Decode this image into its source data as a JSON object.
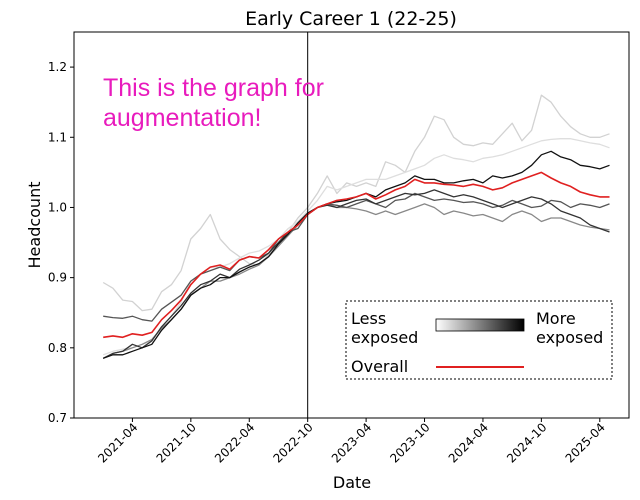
{
  "chart_data": {
    "type": "line",
    "title": "Early Career 1 (22-25)",
    "xlabel": "Date",
    "ylabel": "Headcount",
    "ylim": [
      0.7,
      1.25
    ],
    "yticks": [
      0.7,
      0.8,
      0.9,
      1.0,
      1.1,
      1.2
    ],
    "ytick_labels": [
      "0.7",
      "0.8",
      "0.9",
      "1.0",
      "1.1",
      "1.2"
    ],
    "xticks": [
      3,
      9,
      15,
      21,
      27,
      33,
      39,
      45,
      51
    ],
    "xtick_labels": [
      "2021-04",
      "2021-10",
      "2022-04",
      "2022-10",
      "2023-04",
      "2023-10",
      "2024-04",
      "2024-10",
      "2025-04"
    ],
    "xlim": [
      -3,
      54
    ],
    "x_month_index_origin": "2021-01",
    "vline_x": "2022-10",
    "grid": false,
    "annotation": "This is the graph for\naugmentation!",
    "legend": {
      "placement": "bottom-right",
      "gradient_label_left": "Less\nexposed",
      "gradient_label_right": "More\nexposed",
      "overall_label": "Overall"
    },
    "series": [
      {
        "color": "#d2d2d2",
        "values": [
          0.893,
          0.885,
          0.868,
          0.866,
          0.853,
          0.855,
          0.88,
          0.89,
          0.91,
          0.955,
          0.97,
          0.99,
          0.955,
          0.94,
          0.93,
          0.92,
          0.918,
          0.933,
          0.945,
          0.965,
          0.985,
          1.0,
          1.02,
          1.045,
          1.02,
          1.035,
          1.03,
          1.035,
          1.03,
          1.065,
          1.06,
          1.05,
          1.08,
          1.1,
          1.13,
          1.125,
          1.1,
          1.09,
          1.088,
          1.092,
          1.09,
          1.105,
          1.12,
          1.095,
          1.11,
          1.16,
          1.15,
          1.13,
          1.115,
          1.105,
          1.1,
          1.1,
          1.105
        ]
      },
      {
        "color": "#dedede",
        "values": [
          0.79,
          0.795,
          0.798,
          0.8,
          0.805,
          0.81,
          0.83,
          0.845,
          0.865,
          0.895,
          0.905,
          0.915,
          0.915,
          0.92,
          0.928,
          0.935,
          0.938,
          0.945,
          0.955,
          0.97,
          0.98,
          0.995,
          1.01,
          1.03,
          1.025,
          1.03,
          1.035,
          1.04,
          1.04,
          1.04,
          1.045,
          1.05,
          1.055,
          1.06,
          1.07,
          1.075,
          1.07,
          1.068,
          1.065,
          1.07,
          1.072,
          1.075,
          1.08,
          1.085,
          1.09,
          1.095,
          1.097,
          1.098,
          1.098,
          1.095,
          1.092,
          1.09,
          1.085
        ]
      },
      {
        "color": "#888888",
        "values": [
          0.785,
          0.792,
          0.795,
          0.8,
          0.805,
          0.812,
          0.828,
          0.84,
          0.855,
          0.875,
          0.885,
          0.895,
          0.895,
          0.9,
          0.905,
          0.912,
          0.918,
          0.93,
          0.945,
          0.96,
          0.975,
          0.99,
          1.0,
          1.005,
          1.0,
          1.0,
          0.998,
          0.995,
          0.99,
          0.995,
          0.99,
          0.995,
          1.0,
          1.005,
          1.0,
          0.99,
          0.995,
          0.992,
          0.988,
          0.99,
          0.985,
          0.98,
          0.99,
          0.995,
          0.99,
          0.98,
          0.985,
          0.985,
          0.98,
          0.975,
          0.972,
          0.97,
          0.968
        ]
      },
      {
        "color": "#555555",
        "values": [
          0.845,
          0.843,
          0.842,
          0.845,
          0.84,
          0.838,
          0.855,
          0.865,
          0.875,
          0.895,
          0.905,
          0.91,
          0.915,
          0.91,
          0.925,
          0.93,
          0.928,
          0.935,
          0.955,
          0.965,
          0.97,
          0.99,
          1.0,
          1.005,
          1.003,
          1.0,
          1.005,
          1.01,
          1.005,
          1.0,
          1.01,
          1.012,
          1.02,
          1.015,
          1.01,
          1.012,
          1.01,
          1.007,
          1.008,
          1.005,
          1.0,
          1.003,
          1.01,
          1.005,
          1.0,
          1.002,
          1.01,
          1.008,
          1.0,
          1.005,
          1.003,
          1.0,
          1.005
        ]
      },
      {
        "color": "#333333",
        "values": [
          0.785,
          0.792,
          0.795,
          0.805,
          0.8,
          0.81,
          0.83,
          0.845,
          0.86,
          0.878,
          0.89,
          0.895,
          0.905,
          0.9,
          0.912,
          0.918,
          0.925,
          0.935,
          0.95,
          0.965,
          0.975,
          0.99,
          1.0,
          1.003,
          1.0,
          1.005,
          1.01,
          1.012,
          1.005,
          1.01,
          1.015,
          1.02,
          1.018,
          1.02,
          1.025,
          1.02,
          1.015,
          1.018,
          1.015,
          1.01,
          1.005,
          1.0,
          1.005,
          1.01,
          1.015,
          1.012,
          1.005,
          0.995,
          0.99,
          0.985,
          0.975,
          0.97,
          0.965
        ]
      },
      {
        "color": "#111111",
        "values": [
          0.785,
          0.79,
          0.79,
          0.795,
          0.8,
          0.805,
          0.825,
          0.84,
          0.855,
          0.875,
          0.885,
          0.89,
          0.9,
          0.9,
          0.908,
          0.915,
          0.92,
          0.93,
          0.948,
          0.962,
          0.978,
          0.992,
          1.0,
          1.005,
          1.008,
          1.01,
          1.015,
          1.02,
          1.015,
          1.025,
          1.03,
          1.035,
          1.045,
          1.04,
          1.04,
          1.035,
          1.035,
          1.038,
          1.04,
          1.035,
          1.045,
          1.042,
          1.045,
          1.05,
          1.06,
          1.075,
          1.08,
          1.072,
          1.068,
          1.06,
          1.058,
          1.055,
          1.06
        ]
      },
      {
        "color": "#e02020",
        "overall": true,
        "values": [
          0.815,
          0.817,
          0.815,
          0.82,
          0.818,
          0.822,
          0.84,
          0.853,
          0.868,
          0.89,
          0.905,
          0.915,
          0.918,
          0.912,
          0.925,
          0.93,
          0.928,
          0.94,
          0.955,
          0.965,
          0.975,
          0.99,
          1.0,
          1.005,
          1.01,
          1.012,
          1.015,
          1.02,
          1.012,
          1.018,
          1.025,
          1.03,
          1.04,
          1.035,
          1.035,
          1.033,
          1.032,
          1.03,
          1.033,
          1.03,
          1.025,
          1.028,
          1.035,
          1.04,
          1.045,
          1.05,
          1.042,
          1.035,
          1.03,
          1.022,
          1.018,
          1.015,
          1.015
        ]
      }
    ]
  }
}
